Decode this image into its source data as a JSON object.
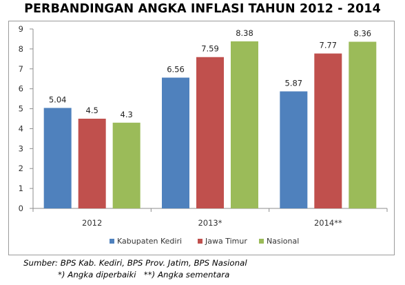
{
  "title": "PERBANDINGAN ANGKA INFLASI TAHUN 2012 - 2014",
  "source_line": "Sumber: BPS Kab. Kediri, BPS Prov. Jatim, BPS Nasional",
  "note_line": "*) Angka diperbaiki   **) Angka sementara",
  "chart_data": {
    "type": "bar",
    "title": "PERBANDINGAN ANGKA INFLASI TAHUN 2012 - 2014",
    "categories": [
      "2012",
      "2013*",
      "2014**"
    ],
    "series": [
      {
        "name": "Kabupaten Kediri",
        "values": [
          5.04,
          6.56,
          5.87
        ],
        "labels": [
          "5.04",
          "6.56",
          "5.87"
        ],
        "color": "#4f81bd"
      },
      {
        "name": "Jawa Timur",
        "values": [
          4.5,
          7.59,
          7.77
        ],
        "labels": [
          "4.5",
          "7.59",
          "7.77"
        ],
        "color": "#c0504d"
      },
      {
        "name": "Nasional",
        "values": [
          4.3,
          8.38,
          8.36
        ],
        "labels": [
          "4.3",
          "8.38",
          "8.36"
        ],
        "color": "#9bbb59"
      }
    ],
    "ylim": [
      0,
      9
    ],
    "yticks": [
      "0",
      "1",
      "2",
      "3",
      "4",
      "5",
      "6",
      "7",
      "8",
      "9"
    ],
    "xlabel": "",
    "ylabel": "",
    "grid": false,
    "legend_position": "bottom"
  }
}
